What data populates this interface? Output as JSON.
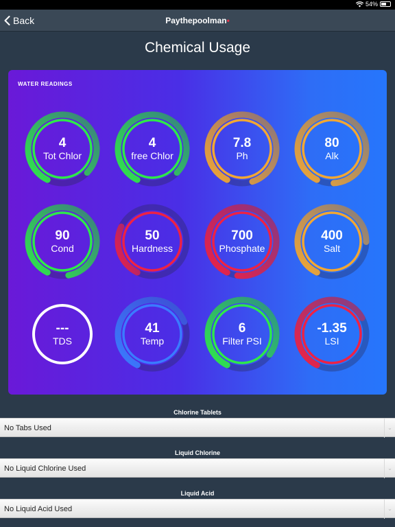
{
  "status": {
    "battery": "54%",
    "battery_level": 0.54
  },
  "nav": {
    "back_label": "Back",
    "title": "Paythepoolman"
  },
  "page": {
    "title": "Chemical Usage"
  },
  "readings": {
    "section_title": "WATER READINGS",
    "gauges": [
      {
        "value": "4",
        "label": "Tot Chlor",
        "color": "#2ee84a",
        "fill": 0.8
      },
      {
        "value": "4",
        "label": "free Chlor",
        "color": "#2ee84a",
        "fill": 0.8
      },
      {
        "value": "7.8",
        "label": "Ph",
        "color": "#f2a733",
        "fill": 0.88
      },
      {
        "value": "80",
        "label": "Alk",
        "color": "#f2a733",
        "fill": 0.92
      },
      {
        "value": "90",
        "label": "Cond",
        "color": "#2ee84a",
        "fill": 0.9
      },
      {
        "value": "50",
        "label": "Hardness",
        "color": "#ee2244",
        "fill": 0.25
      },
      {
        "value": "700",
        "label": "Phosphate",
        "color": "#ee2244",
        "fill": 0.95
      },
      {
        "value": "400",
        "label": "Salt",
        "color": "#f2a733",
        "fill": 0.68
      },
      {
        "value": "---",
        "label": "TDS",
        "color": "#ffffff",
        "fill": 0
      },
      {
        "value": "41",
        "label": "Temp",
        "color": "#3a7bff",
        "fill": 0.62
      },
      {
        "value": "6",
        "label": "Filter PSI",
        "color": "#2ee84a",
        "fill": 0.78
      },
      {
        "value": "-1.35",
        "label": "LSI",
        "color": "#ee2244",
        "fill": 0.6
      }
    ]
  },
  "usage": [
    {
      "label": "Chlorine Tablets",
      "value": "No Tabs Used"
    },
    {
      "label": "Liquid Chlorine",
      "value": "No Liquid Chlorine Used"
    },
    {
      "label": "Liquid Acid",
      "value": "No Liquid Acid Used"
    }
  ]
}
